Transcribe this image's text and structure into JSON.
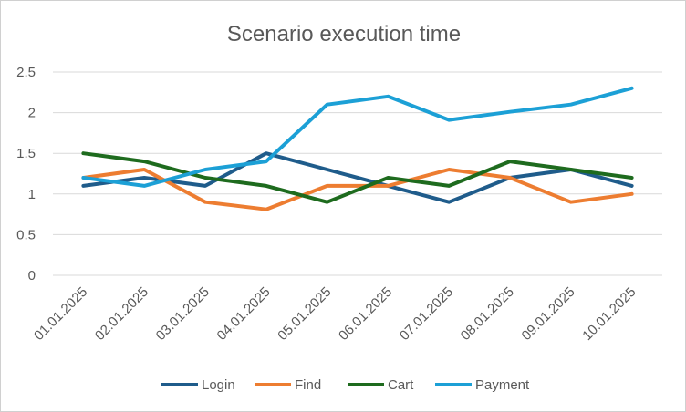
{
  "chart_data": {
    "type": "line",
    "title": "Scenario execution time",
    "xlabel": "",
    "ylabel": "",
    "categories": [
      "01.01.2025",
      "02.01.2025",
      "03.01.2025",
      "04.01.2025",
      "05.01.2025",
      "06.01.2025",
      "07.01.2025",
      "08.01.2025",
      "09.01.2025",
      "10.01.2025"
    ],
    "ylim": [
      0,
      2.5
    ],
    "yticks": [
      "0",
      "0.5",
      "1",
      "1.5",
      "2",
      "2.5"
    ],
    "grid": true,
    "legend_position": "bottom",
    "series": [
      {
        "name": "Login",
        "color": "#1f5c8b",
        "values": [
          1.1,
          1.2,
          1.1,
          1.5,
          1.3,
          1.1,
          0.9,
          1.2,
          1.3,
          1.1
        ]
      },
      {
        "name": "Find",
        "color": "#ed7d31",
        "values": [
          1.2,
          1.3,
          0.9,
          0.81,
          1.1,
          1.1,
          1.3,
          1.2,
          0.9,
          1.0
        ]
      },
      {
        "name": "Cart",
        "color": "#1e6b1e",
        "values": [
          1.5,
          1.4,
          1.2,
          1.1,
          0.9,
          1.2,
          1.1,
          1.4,
          1.3,
          1.2
        ]
      },
      {
        "name": "Payment",
        "color": "#1ca0d6",
        "values": [
          1.2,
          1.1,
          1.3,
          1.4,
          2.1,
          2.2,
          1.91,
          2.01,
          2.1,
          2.3
        ]
      }
    ]
  }
}
